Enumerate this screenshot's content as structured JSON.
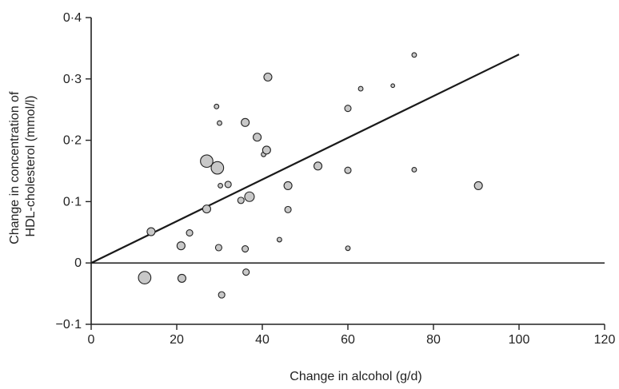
{
  "chart_data": {
    "type": "scatter",
    "title": "",
    "xlabel": "Change in alcohol (g/d)",
    "ylabel_lines": [
      "Change in concentration of",
      "HDL-cholesterol (mmol/l)"
    ],
    "xlim": [
      0,
      120
    ],
    "ylim": [
      -0.1,
      0.4
    ],
    "x_ticks": [
      0,
      20,
      40,
      60,
      80,
      100,
      120
    ],
    "x_tick_labels": [
      "0",
      "20",
      "40",
      "60",
      "80",
      "100",
      "120"
    ],
    "y_ticks": [
      -0.1,
      0,
      0.1,
      0.2,
      0.3,
      0.4
    ],
    "y_tick_labels": [
      "−0·1",
      "0",
      "0·1",
      "0·2",
      "0·3",
      "0·4"
    ],
    "grid": false,
    "legend": "none",
    "marker_fill": "#c8c8c8",
    "marker_stroke": "#222222",
    "points": [
      {
        "x": 12.5,
        "y": -0.024,
        "size": "xl"
      },
      {
        "x": 14,
        "y": 0.051,
        "size": "m"
      },
      {
        "x": 21,
        "y": 0.028,
        "size": "m"
      },
      {
        "x": 21.2,
        "y": -0.025,
        "size": "m"
      },
      {
        "x": 23,
        "y": 0.049,
        "size": "s"
      },
      {
        "x": 27,
        "y": 0.166,
        "size": "xl"
      },
      {
        "x": 27,
        "y": 0.088,
        "size": "m"
      },
      {
        "x": 29.5,
        "y": 0.155,
        "size": "xl"
      },
      {
        "x": 29.3,
        "y": 0.255,
        "size": "xs"
      },
      {
        "x": 29.8,
        "y": 0.025,
        "size": "s"
      },
      {
        "x": 30,
        "y": 0.228,
        "size": "xs"
      },
      {
        "x": 30.2,
        "y": 0.126,
        "size": "xs"
      },
      {
        "x": 30.5,
        "y": -0.052,
        "size": "s"
      },
      {
        "x": 32,
        "y": 0.128,
        "size": "s"
      },
      {
        "x": 35,
        "y": 0.102,
        "size": "s"
      },
      {
        "x": 36,
        "y": 0.229,
        "size": "m"
      },
      {
        "x": 36,
        "y": 0.023,
        "size": "s"
      },
      {
        "x": 36.2,
        "y": -0.015,
        "size": "s"
      },
      {
        "x": 37,
        "y": 0.108,
        "size": "l"
      },
      {
        "x": 38.8,
        "y": 0.205,
        "size": "m"
      },
      {
        "x": 40.3,
        "y": 0.177,
        "size": "xs"
      },
      {
        "x": 41,
        "y": 0.184,
        "size": "m"
      },
      {
        "x": 41.3,
        "y": 0.303,
        "size": "m"
      },
      {
        "x": 44,
        "y": 0.038,
        "size": "xs"
      },
      {
        "x": 46,
        "y": 0.126,
        "size": "m"
      },
      {
        "x": 46,
        "y": 0.087,
        "size": "s"
      },
      {
        "x": 53,
        "y": 0.158,
        "size": "m"
      },
      {
        "x": 60,
        "y": 0.252,
        "size": "s"
      },
      {
        "x": 60,
        "y": 0.151,
        "size": "s"
      },
      {
        "x": 60,
        "y": 0.024,
        "size": "xs"
      },
      {
        "x": 63,
        "y": 0.284,
        "size": "xs"
      },
      {
        "x": 70.5,
        "y": 0.289,
        "size": "xxs"
      },
      {
        "x": 75.5,
        "y": 0.339,
        "size": "xs"
      },
      {
        "x": 75.5,
        "y": 0.152,
        "size": "xs"
      },
      {
        "x": 90.5,
        "y": 0.126,
        "size": "m"
      }
    ],
    "lines": [
      {
        "name": "",
        "x": [
          0,
          100
        ],
        "y": [
          0,
          0.34
        ],
        "stroke_width": 2.2
      },
      {
        "name": "",
        "x": [
          0,
          120
        ],
        "y": [
          0,
          0
        ],
        "stroke_width": 1.5
      }
    ]
  }
}
